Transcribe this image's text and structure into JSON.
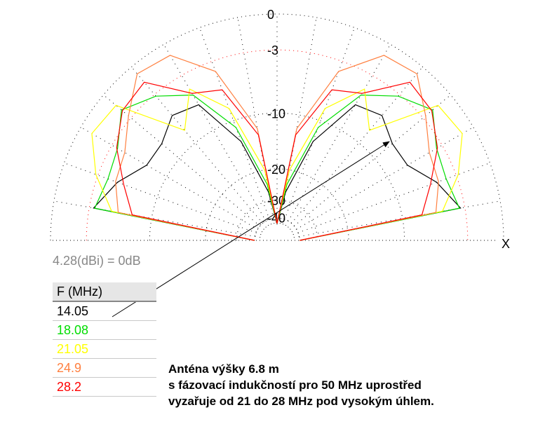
{
  "chart_data": {
    "type": "polar",
    "x": [
      0,
      10,
      20,
      30,
      40,
      50,
      60,
      70,
      80,
      90,
      100,
      110,
      120,
      130,
      140,
      150,
      160,
      170,
      180
    ],
    "rlim": [
      -45,
      0
    ],
    "rticks": [
      0,
      -3,
      -10,
      -20,
      -30,
      -40
    ],
    "axis_label": "X",
    "reference": "4.28(dBi) = 0dB",
    "legend_title": "F (MHz)",
    "series": [
      {
        "name": "14.05",
        "color": "#000000",
        "values": [
          -40,
          -3.4,
          -5,
          -7.1,
          -7.1,
          -5.7,
          -6.4,
          -13.3,
          -26.6,
          -45,
          -26.6,
          -13.3,
          -6.4,
          -5.7,
          -7.1,
          -7.1,
          -5,
          -3.4,
          -40
        ]
      },
      {
        "name": "18.08",
        "color": "#00dd00",
        "values": [
          -40,
          -3.5,
          -4,
          -3.6,
          -1.9,
          -3.2,
          -5.2,
          -11,
          -24,
          -45,
          -24,
          -11,
          -5.2,
          -3.2,
          -1.9,
          -3.6,
          -4,
          -3.5,
          -40
        ]
      },
      {
        "name": "21.05",
        "color": "#ffff00",
        "values": [
          -40,
          -5.2,
          -2.8,
          -1,
          -1.3,
          -7.9,
          -4.5,
          -8.3,
          -20,
          -45,
          -20,
          -8.3,
          -4.5,
          -7.9,
          -1.3,
          -1,
          -2.8,
          -5.2,
          -40
        ]
      },
      {
        "name": "24.9",
        "color": "#ff8040",
        "values": [
          -40,
          -5.9,
          -4.8,
          -4.4,
          -2.7,
          -0.7,
          -1,
          -4,
          -12,
          -45,
          -12,
          -4,
          -1,
          -0.7,
          -2.7,
          -4.4,
          -4.8,
          -5.9,
          -40
        ]
      },
      {
        "name": "28.2",
        "color": "#ff0000",
        "values": [
          -40,
          -7.5,
          -5.7,
          -3.5,
          -2,
          -1.6,
          -5,
          -6,
          -13,
          -45,
          -13,
          -6,
          -5,
          -1.6,
          -2,
          -3.5,
          -5.7,
          -7.5,
          -40
        ]
      }
    ],
    "annotation": [
      "Anténa výšky 6.8 m",
      "s fázovací indukčností pro 50 MHz uprostřed",
      "vyzařuje od 21 do 28 MHz pod vysokým úhlem."
    ]
  }
}
